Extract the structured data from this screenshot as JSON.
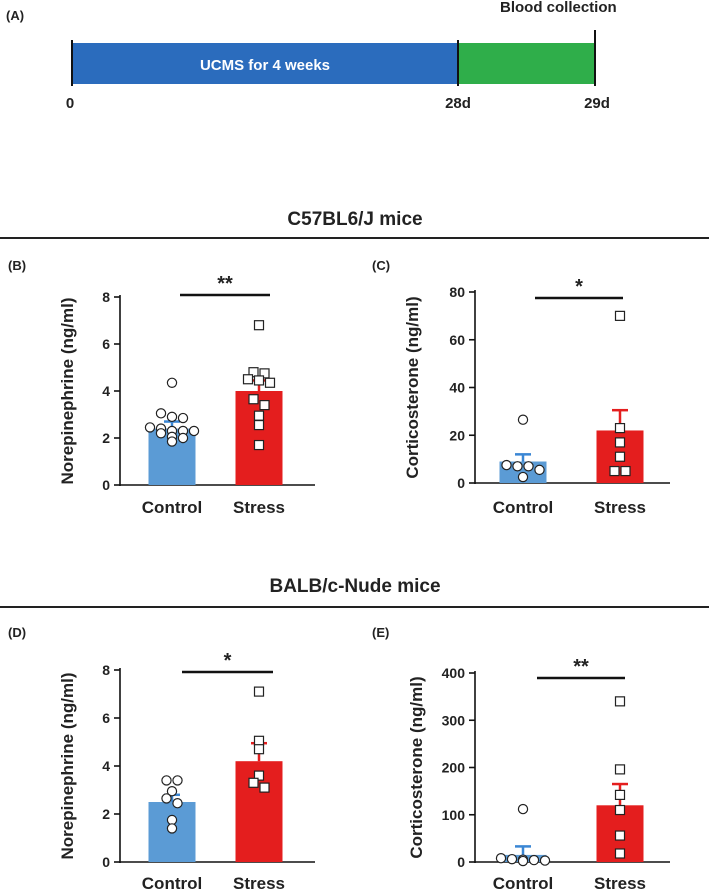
{
  "timeline": {
    "panel_label": "(A)",
    "phase1_label": "UCMS for 4 weeks",
    "phase1_color": "#2b6cbd",
    "phase2_color": "#2fae4a",
    "end_label": "Blood collection",
    "ticks": [
      "0",
      "28d",
      "29d"
    ]
  },
  "sections": [
    {
      "title": "C57BL6/J mice"
    },
    {
      "title": "BALB/c-Nude mice"
    }
  ],
  "colors": {
    "control": "#5b9bd5",
    "stress": "#e41e1e",
    "errorbar_control": "#3a86d4",
    "errorbar_stress": "#e41e1e",
    "text": "#222222"
  },
  "chart_data": [
    {
      "panel_label": "(B)",
      "type": "bar",
      "ylabel": "Norepinephrine (ng/ml)",
      "ylim": [
        0,
        8
      ],
      "yticks": [
        "0",
        "2",
        "4",
        "6",
        "8"
      ],
      "ytick_values": [
        0,
        2,
        4,
        6,
        8
      ],
      "categories": [
        "Control",
        "Stress"
      ],
      "values": [
        2.4,
        4.0
      ],
      "errors": [
        0.3,
        0.45
      ],
      "significance": "**",
      "points": [
        [
          4.35,
          3.05,
          2.9,
          2.85,
          2.45,
          2.4,
          2.3,
          2.3,
          2.3,
          2.2,
          2.05,
          2.0,
          1.85
        ],
        [
          6.8,
          4.8,
          4.75,
          4.5,
          4.45,
          4.35,
          3.65,
          3.4,
          2.95,
          2.55,
          1.7
        ]
      ]
    },
    {
      "panel_label": "(C)",
      "type": "bar",
      "ylabel": "Corticosterone (ng/ml)",
      "ylim": [
        0,
        80
      ],
      "yticks": [
        "0",
        "20",
        "40",
        "60",
        "80"
      ],
      "ytick_values": [
        0,
        20,
        40,
        60,
        80
      ],
      "categories": [
        "Control",
        "Stress"
      ],
      "values": [
        9,
        22
      ],
      "errors": [
        3,
        8.5
      ],
      "significance": "*",
      "points": [
        [
          26.5,
          7.5,
          7,
          7,
          5.5,
          2.5
        ],
        [
          70,
          23,
          17,
          11,
          5,
          5
        ]
      ]
    },
    {
      "panel_label": "(D)",
      "type": "bar",
      "ylabel": "Norepinephrine (ng/ml)",
      "ylim": [
        0,
        8
      ],
      "yticks": [
        "0",
        "2",
        "4",
        "6",
        "8"
      ],
      "ytick_values": [
        0,
        2,
        4,
        6,
        8
      ],
      "categories": [
        "Control",
        "Stress"
      ],
      "values": [
        2.5,
        4.2
      ],
      "errors": [
        0.3,
        0.75
      ],
      "significance": "*",
      "points": [
        [
          3.4,
          3.4,
          2.95,
          2.65,
          2.45,
          1.75,
          1.4
        ],
        [
          7.1,
          5.05,
          4.7,
          3.6,
          3.3,
          3.1
        ]
      ]
    },
    {
      "panel_label": "(E)",
      "type": "bar",
      "ylabel": "Corticosterone (ng/ml)",
      "ylim": [
        0,
        400
      ],
      "yticks": [
        "0",
        "100",
        "200",
        "300",
        "400"
      ],
      "ytick_values": [
        0,
        100,
        200,
        300,
        400
      ],
      "categories": [
        "Control",
        "Stress"
      ],
      "values": [
        15,
        120
      ],
      "errors": [
        18,
        45
      ],
      "significance": "**",
      "points": [
        [
          112,
          8,
          6,
          5,
          4,
          3,
          2
        ],
        [
          340,
          196,
          142,
          110,
          56,
          18
        ]
      ]
    }
  ]
}
